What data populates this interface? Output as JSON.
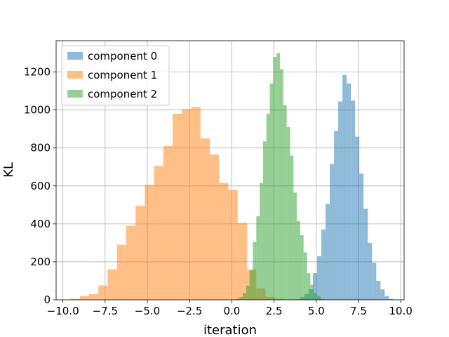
{
  "chart_data": {
    "type": "histogram",
    "title": "",
    "xlabel": "iteration",
    "ylabel": "KL",
    "xlim": [
      -10.4,
      10.2
    ],
    "ylim": [
      0,
      1365
    ],
    "xticks": [
      -10.0,
      -7.5,
      -5.0,
      -2.5,
      0.0,
      2.5,
      5.0,
      7.5,
      10.0
    ],
    "xtick_labels": [
      "−10.0",
      "−7.5",
      "−5.0",
      "−2.5",
      "0.0",
      "2.5",
      "5.0",
      "7.5",
      "10.0"
    ],
    "yticks": [
      0,
      200,
      400,
      600,
      800,
      1000,
      1200
    ],
    "ytick_labels": [
      "0",
      "200",
      "400",
      "600",
      "800",
      "1000",
      "1200"
    ],
    "grid": true,
    "legend_position": "top-left",
    "alpha": 0.5,
    "series": [
      {
        "name": "component 0",
        "color": "#1f77b4",
        "bins": [
          [
            3.8,
            4.05,
            3
          ],
          [
            4.05,
            4.3,
            15
          ],
          [
            4.3,
            4.55,
            30
          ],
          [
            4.55,
            4.8,
            55
          ],
          [
            4.8,
            5.05,
            140
          ],
          [
            5.05,
            5.3,
            230
          ],
          [
            5.3,
            5.55,
            370
          ],
          [
            5.55,
            5.8,
            505
          ],
          [
            5.8,
            6.05,
            715
          ],
          [
            6.05,
            6.3,
            890
          ],
          [
            6.3,
            6.55,
            1045
          ],
          [
            6.55,
            6.8,
            1185
          ],
          [
            6.8,
            7.05,
            1140
          ],
          [
            7.05,
            7.3,
            1050
          ],
          [
            7.3,
            7.55,
            860
          ],
          [
            7.55,
            7.8,
            665
          ],
          [
            7.8,
            8.05,
            480
          ],
          [
            8.05,
            8.3,
            300
          ],
          [
            8.3,
            8.55,
            195
          ],
          [
            8.55,
            8.8,
            100
          ],
          [
            8.8,
            9.05,
            55
          ],
          [
            9.05,
            9.3,
            20
          ],
          [
            9.3,
            9.55,
            5
          ]
        ]
      },
      {
        "name": "component 1",
        "color": "#ff7f0e",
        "bins": [
          [
            -9.55,
            -9.0,
            5
          ],
          [
            -9.0,
            -8.45,
            20
          ],
          [
            -8.45,
            -7.9,
            30
          ],
          [
            -7.9,
            -7.35,
            75
          ],
          [
            -7.35,
            -6.8,
            160
          ],
          [
            -6.8,
            -6.25,
            290
          ],
          [
            -6.25,
            -5.7,
            390
          ],
          [
            -5.7,
            -5.15,
            495
          ],
          [
            -5.15,
            -4.6,
            605
          ],
          [
            -4.6,
            -4.05,
            705
          ],
          [
            -4.05,
            -3.5,
            810
          ],
          [
            -3.5,
            -2.95,
            980
          ],
          [
            -2.95,
            -2.4,
            1005
          ],
          [
            -2.4,
            -1.85,
            1015
          ],
          [
            -1.85,
            -1.3,
            850
          ],
          [
            -1.3,
            -0.75,
            765
          ],
          [
            -0.75,
            -0.2,
            615
          ],
          [
            -0.2,
            0.35,
            580
          ],
          [
            0.35,
            0.9,
            405
          ],
          [
            0.9,
            1.45,
            160
          ],
          [
            1.45,
            2.0,
            60
          ],
          [
            2.0,
            2.55,
            15
          ],
          [
            2.55,
            3.1,
            5
          ]
        ]
      },
      {
        "name": "component 2",
        "color": "#2ca02c",
        "bins": [
          [
            0.25,
            0.45,
            5
          ],
          [
            0.45,
            0.65,
            15
          ],
          [
            0.65,
            0.85,
            35
          ],
          [
            0.85,
            1.05,
            75
          ],
          [
            1.05,
            1.25,
            155
          ],
          [
            1.25,
            1.45,
            305
          ],
          [
            1.45,
            1.65,
            440
          ],
          [
            1.65,
            1.85,
            615
          ],
          [
            1.85,
            2.05,
            835
          ],
          [
            2.05,
            2.25,
            980
          ],
          [
            2.25,
            2.45,
            1140
          ],
          [
            2.45,
            2.65,
            1280
          ],
          [
            2.65,
            2.85,
            1300
          ],
          [
            2.85,
            3.05,
            1215
          ],
          [
            3.05,
            3.25,
            1025
          ],
          [
            3.25,
            3.45,
            910
          ],
          [
            3.45,
            3.65,
            760
          ],
          [
            3.65,
            3.85,
            565
          ],
          [
            3.85,
            4.05,
            415
          ],
          [
            4.05,
            4.25,
            340
          ],
          [
            4.25,
            4.45,
            250
          ],
          [
            4.45,
            4.65,
            140
          ],
          [
            4.65,
            4.85,
            80
          ],
          [
            4.85,
            5.05,
            35
          ],
          [
            5.05,
            5.25,
            20
          ],
          [
            5.25,
            5.45,
            5
          ]
        ]
      }
    ]
  }
}
